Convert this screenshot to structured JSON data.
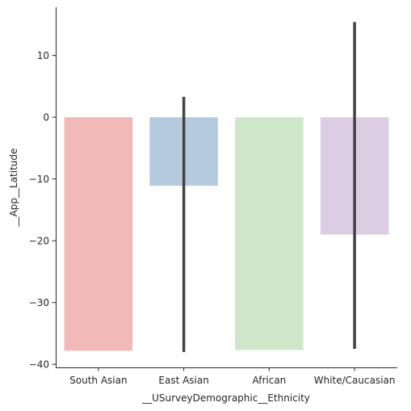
{
  "chart_data": {
    "type": "bar",
    "xlabel": "__USurveyDemographic__Ethnicity",
    "ylabel": "__App__Latitude",
    "ylim": [
      -40.5,
      17.8
    ],
    "yticks": [
      -40,
      -30,
      -20,
      -10,
      0,
      10
    ],
    "grid": false,
    "categories": [
      "South Asian",
      "East Asian",
      "African",
      "White/Caucasian"
    ],
    "series": [
      {
        "values": [
          -37.8,
          -11.1,
          -37.7,
          -19.0
        ],
        "error_low": [
          null,
          -38.0,
          null,
          -37.5
        ],
        "error_high": [
          null,
          3.3,
          null,
          15.4
        ]
      }
    ],
    "colors": [
      "#f1bab8",
      "#b6cadf",
      "#d0e6cb",
      "#dccde3"
    ],
    "error_color": "#424242"
  }
}
